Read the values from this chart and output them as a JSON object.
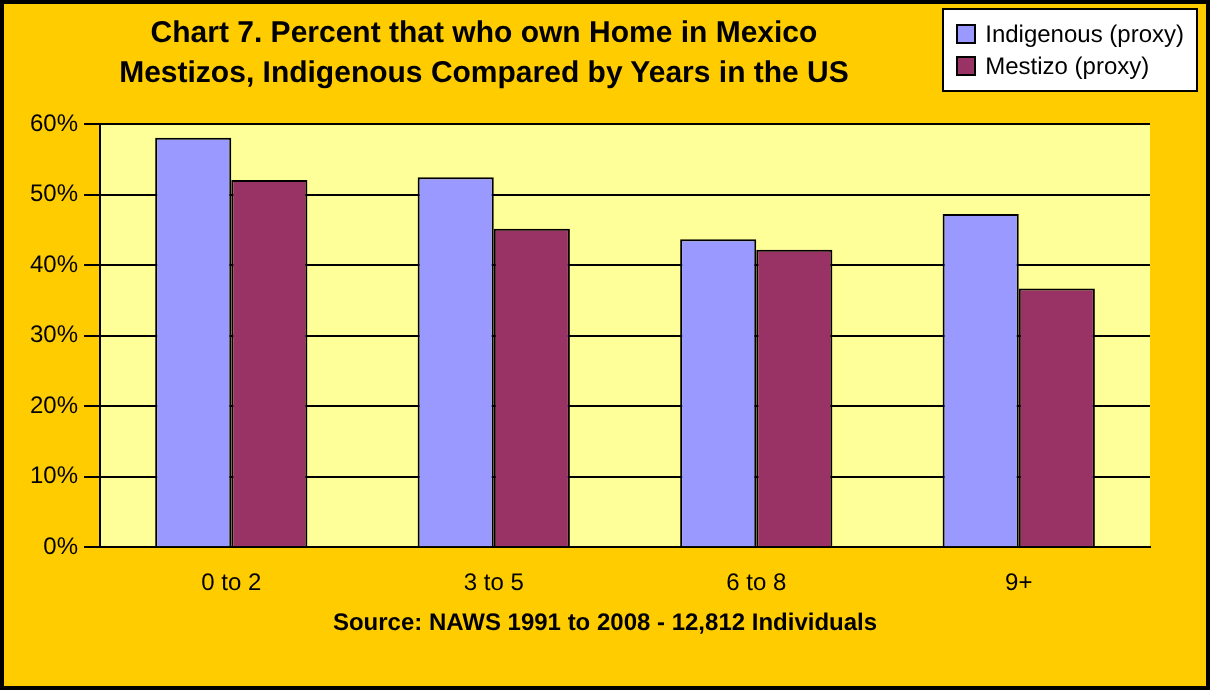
{
  "chart_data": {
    "type": "bar",
    "title": [
      "Chart 7.  Percent that who own Home in Mexico",
      "Mestizos, Indigenous Compared by Years in the US"
    ],
    "categories": [
      "0 to 2",
      "3 to 5",
      "6 to 8",
      "9+"
    ],
    "series": [
      {
        "name": "Indigenous (proxy)",
        "color": "#9999ff",
        "values": [
          58.1,
          52.5,
          43.7,
          47.3
        ]
      },
      {
        "name": "Mestizo (proxy)",
        "color": "#993366",
        "values": [
          52.1,
          45.2,
          42.2,
          36.7
        ]
      }
    ],
    "ylim": [
      0,
      60
    ],
    "yticks": [
      {
        "value": 0,
        "label": "0%"
      },
      {
        "value": 10,
        "label": "10%"
      },
      {
        "value": 20,
        "label": "20%"
      },
      {
        "value": 30,
        "label": "30%"
      },
      {
        "value": 40,
        "label": "40%"
      },
      {
        "value": 50,
        "label": "50%"
      },
      {
        "value": 60,
        "label": "60%"
      }
    ],
    "grid": "y",
    "legend": "top right",
    "annotations": [
      "Source: NAWS 1991 to 2008 - 12,812 Individuals"
    ]
  }
}
